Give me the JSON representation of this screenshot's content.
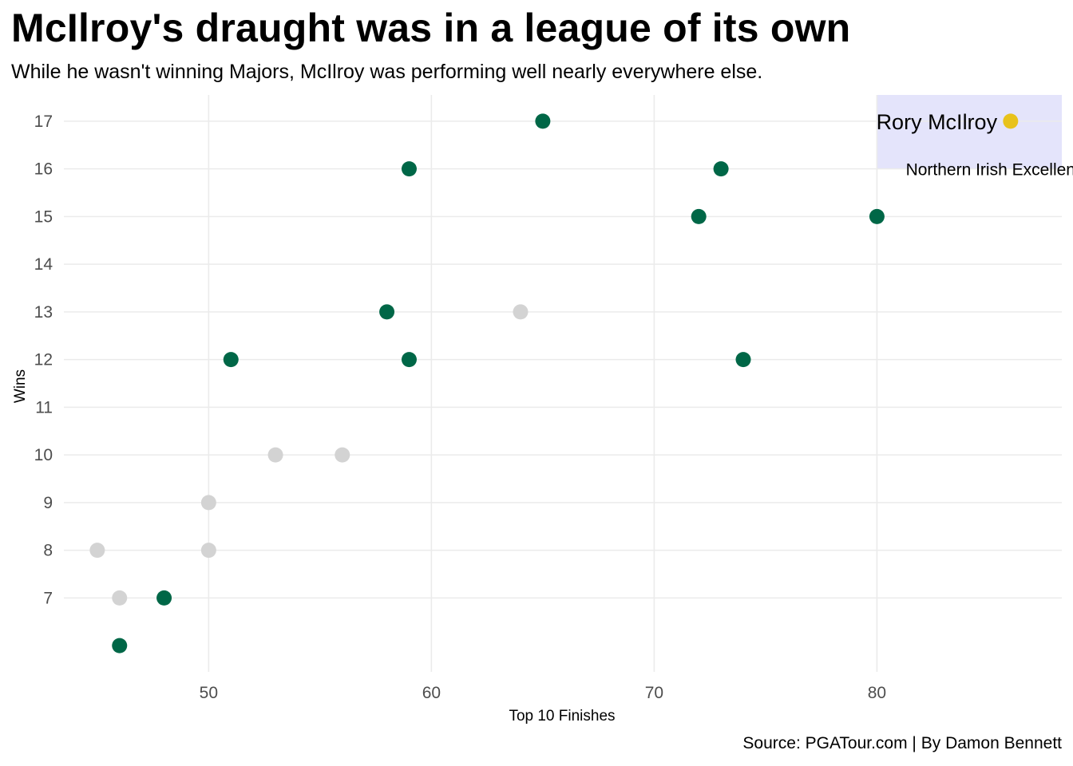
{
  "chart_data": {
    "type": "scatter",
    "title": "McIlroy's draught was in a league of its own",
    "subtitle": "While he wasn't winning Majors, McIlroy was performing well nearly everywhere else.",
    "caption": "Source: PGATour.com | By Damon Bennett",
    "xlabel": "Top 10 Finishes",
    "ylabel": "Wins",
    "xlim": [
      43.5,
      88.3
    ],
    "ylim": [
      5.45,
      17.55
    ],
    "xticks": [
      50,
      60,
      70,
      80
    ],
    "yticks": [
      7,
      8,
      9,
      10,
      11,
      12,
      13,
      14,
      15,
      16,
      17
    ],
    "grid": true,
    "colors": {
      "major_winner": "#006747",
      "no_major": "#d3d3d3",
      "highlight": "#e8c21b",
      "highlight_band": "#e4e4fb"
    },
    "series": [
      {
        "key": "major_winner",
        "points": [
          {
            "x": 65,
            "y": 17
          },
          {
            "x": 59,
            "y": 16
          },
          {
            "x": 73,
            "y": 16
          },
          {
            "x": 72,
            "y": 15
          },
          {
            "x": 80,
            "y": 15
          },
          {
            "x": 58,
            "y": 13
          },
          {
            "x": 51,
            "y": 12
          },
          {
            "x": 59,
            "y": 12
          },
          {
            "x": 74,
            "y": 12
          },
          {
            "x": 48,
            "y": 7
          },
          {
            "x": 46,
            "y": 6
          }
        ]
      },
      {
        "key": "no_major",
        "points": [
          {
            "x": 64,
            "y": 13
          },
          {
            "x": 53,
            "y": 10
          },
          {
            "x": 56,
            "y": 10
          },
          {
            "x": 50,
            "y": 9
          },
          {
            "x": 45,
            "y": 8
          },
          {
            "x": 50,
            "y": 8
          },
          {
            "x": 46,
            "y": 7
          }
        ]
      },
      {
        "key": "highlight",
        "points": [
          {
            "x": 86,
            "y": 17
          }
        ]
      }
    ],
    "highlight_band": {
      "x_from": 80,
      "y_from": 16,
      "y_to": 17.55
    },
    "annotations": [
      {
        "text": "Rory McIlroy",
        "x": 85.4,
        "y": 17,
        "anchor": "end",
        "size": "big"
      },
      {
        "text": "Northern Irish Excellence",
        "x": 85.5,
        "y": 16,
        "anchor": "middle",
        "size": "small"
      }
    ]
  }
}
